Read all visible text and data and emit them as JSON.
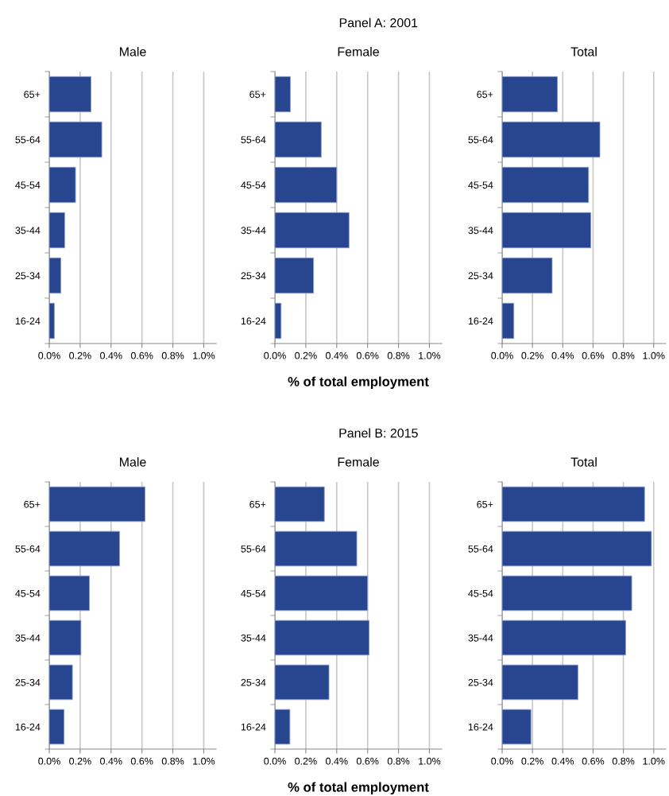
{
  "chart_data": [
    {
      "type": "bar",
      "orientation": "horizontal",
      "title": "Male",
      "categories": [
        "65+",
        "55-64",
        "45-54",
        "35-44",
        "25-34",
        "16-24"
      ],
      "values": [
        0.27,
        0.34,
        0.17,
        0.1,
        0.075,
        0.033
      ],
      "color": "#27468f",
      "xlim": [
        0,
        1.08
      ],
      "xticks": [
        {
          "value": 0,
          "label": "0.0%"
        },
        {
          "value": 0.2,
          "label": "0.2%"
        },
        {
          "value": 0.4,
          "label": "0.4%"
        },
        {
          "value": 0.6,
          "label": "0.6%"
        },
        {
          "value": 0.8,
          "label": "0.8%"
        },
        {
          "value": 1.0,
          "label": "1.0%"
        }
      ],
      "grid": "x",
      "legend": false
    },
    {
      "type": "bar",
      "orientation": "horizontal",
      "title": "Female",
      "annotations": [
        "Panel A: 2001"
      ],
      "xlabel": "% of total employment",
      "categories": [
        "65+",
        "55-64",
        "45-54",
        "35-44",
        "25-34",
        "16-24"
      ],
      "values": [
        0.1,
        0.3,
        0.4,
        0.48,
        0.25,
        0.04
      ],
      "color": "#27468f",
      "xlim": [
        0,
        1.08
      ],
      "xticks": [
        {
          "value": 0,
          "label": "0.0%"
        },
        {
          "value": 0.2,
          "label": "0.2%"
        },
        {
          "value": 0.4,
          "label": "0.4%"
        },
        {
          "value": 0.6,
          "label": "0.6%"
        },
        {
          "value": 0.8,
          "label": "0.8%"
        },
        {
          "value": 1.0,
          "label": "1.0%"
        }
      ],
      "grid": "x",
      "legend": false
    },
    {
      "type": "bar",
      "orientation": "horizontal",
      "title": "Total",
      "categories": [
        "65+",
        "55-64",
        "45-54",
        "35-44",
        "25-34",
        "16-24"
      ],
      "values": [
        0.365,
        0.645,
        0.57,
        0.585,
        0.33,
        0.077
      ],
      "color": "#27468f",
      "xlim": [
        0,
        1.08
      ],
      "xticks": [
        {
          "value": 0,
          "label": "0.0%"
        },
        {
          "value": 0.2,
          "label": "0.2%"
        },
        {
          "value": 0.4,
          "label": "0.4%"
        },
        {
          "value": 0.6,
          "label": "0.6%"
        },
        {
          "value": 0.8,
          "label": "0.8%"
        },
        {
          "value": 1.0,
          "label": "1.0%"
        }
      ],
      "grid": "x",
      "legend": false
    },
    {
      "type": "bar",
      "orientation": "horizontal",
      "title": "Male",
      "categories": [
        "65+",
        "55-64",
        "45-54",
        "35-44",
        "25-34",
        "16-24"
      ],
      "values": [
        0.62,
        0.455,
        0.26,
        0.205,
        0.15,
        0.096
      ],
      "color": "#27468f",
      "xlim": [
        0,
        1.08
      ],
      "xticks": [
        {
          "value": 0,
          "label": "0.0%"
        },
        {
          "value": 0.2,
          "label": "0.2%"
        },
        {
          "value": 0.4,
          "label": "0.4%"
        },
        {
          "value": 0.6,
          "label": "0.6%"
        },
        {
          "value": 0.8,
          "label": "0.8%"
        },
        {
          "value": 1.0,
          "label": "1.0%"
        }
      ],
      "grid": "x",
      "legend": false
    },
    {
      "type": "bar",
      "orientation": "horizontal",
      "title": "Female",
      "annotations": [
        "Panel B: 2015"
      ],
      "xlabel": "% of total employment",
      "categories": [
        "65+",
        "55-64",
        "45-54",
        "35-44",
        "25-34",
        "16-24"
      ],
      "values": [
        0.32,
        0.53,
        0.6,
        0.61,
        0.35,
        0.097
      ],
      "color": "#27468f",
      "xlim": [
        0,
        1.08
      ],
      "xticks": [
        {
          "value": 0,
          "label": "0.0%"
        },
        {
          "value": 0.2,
          "label": "0.2%"
        },
        {
          "value": 0.4,
          "label": "0.4%"
        },
        {
          "value": 0.6,
          "label": "0.6%"
        },
        {
          "value": 0.8,
          "label": "0.8%"
        },
        {
          "value": 1.0,
          "label": "1.0%"
        }
      ],
      "grid": "x",
      "legend": false
    },
    {
      "type": "bar",
      "orientation": "horizontal",
      "title": "Total",
      "categories": [
        "65+",
        "55-64",
        "45-54",
        "35-44",
        "25-34",
        "16-24"
      ],
      "values": [
        0.94,
        0.985,
        0.855,
        0.815,
        0.5,
        0.19
      ],
      "color": "#27468f",
      "xlim": [
        0,
        1.08
      ],
      "xticks": [
        {
          "value": 0,
          "label": "0.0%"
        },
        {
          "value": 0.2,
          "label": "0.2%"
        },
        {
          "value": 0.4,
          "label": "0.4%"
        },
        {
          "value": 0.6,
          "label": "0.6%"
        },
        {
          "value": 0.8,
          "label": "0.8%"
        },
        {
          "value": 1.0,
          "label": "1.0%"
        }
      ],
      "grid": "x",
      "legend": false
    }
  ]
}
